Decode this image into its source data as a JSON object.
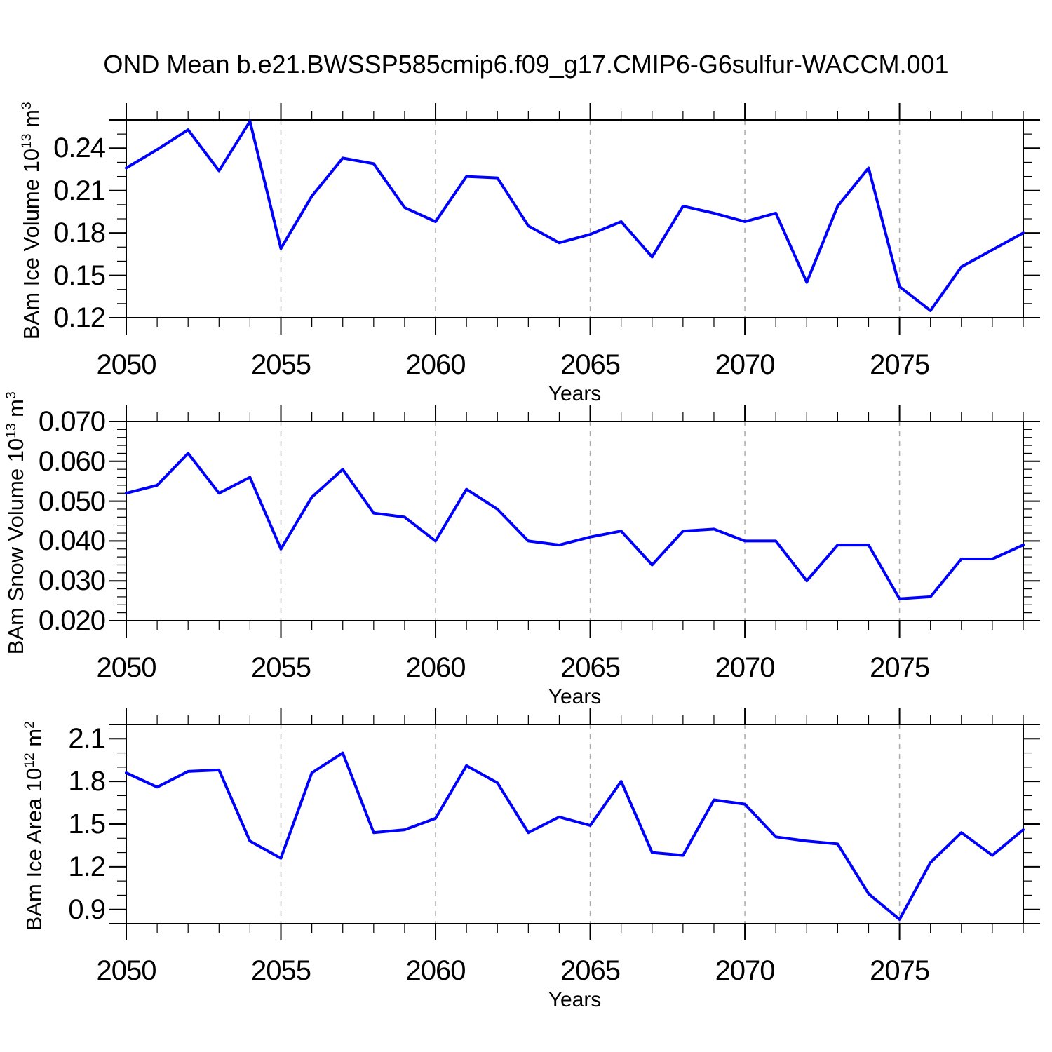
{
  "title": "OND Mean b.e21.BWSSP585cmip6.f09_g17.CMIP6-G6sulfur-WACCM.001",
  "colors": {
    "line": "#0000ff",
    "grid": "#aaaaaa",
    "axis": "#000000",
    "background": "#ffffff"
  },
  "x_axis": {
    "label": "Years",
    "range": [
      2050,
      2079
    ],
    "major_tick_labels": [
      "2050",
      "2055",
      "2060",
      "2065",
      "2070",
      "2075"
    ],
    "major_tick_years": [
      2050,
      2055,
      2060,
      2065,
      2070,
      2075
    ],
    "minor_step_years": 1,
    "grid_years": [
      2055,
      2060,
      2065,
      2070,
      2075
    ],
    "years": [
      2050,
      2051,
      2052,
      2053,
      2054,
      2055,
      2056,
      2057,
      2058,
      2059,
      2060,
      2061,
      2062,
      2063,
      2064,
      2065,
      2066,
      2067,
      2068,
      2069,
      2070,
      2071,
      2072,
      2073,
      2074,
      2075,
      2076,
      2077,
      2078,
      2079
    ]
  },
  "chart_data": [
    {
      "type": "line",
      "name": "bam-ice-volume",
      "ylabel": {
        "base": "BAm Ice Volume 10",
        "exp": "13",
        "unit": " m",
        "unit_exp": "3"
      },
      "ylim": [
        0.12,
        0.26
      ],
      "ytick_labels": [
        "0.12",
        "0.15",
        "0.18",
        "0.21",
        "0.24"
      ],
      "ytick_values": [
        0.12,
        0.15,
        0.18,
        0.21,
        0.24
      ],
      "yminor_step": 0.01,
      "values": [
        0.226,
        0.239,
        0.253,
        0.224,
        0.259,
        0.169,
        0.206,
        0.233,
        0.229,
        0.198,
        0.188,
        0.22,
        0.219,
        0.185,
        0.173,
        0.179,
        0.188,
        0.163,
        0.199,
        0.194,
        0.188,
        0.194,
        0.145,
        0.199,
        0.226,
        0.142,
        0.125,
        0.156,
        0.168,
        0.18
      ]
    },
    {
      "type": "line",
      "name": "bam-snow-volume",
      "ylabel": {
        "base": "BAm Snow Volume 10",
        "exp": "13",
        "unit": " m",
        "unit_exp": "3"
      },
      "ylim": [
        0.02,
        0.07
      ],
      "ytick_labels": [
        "0.020",
        "0.030",
        "0.040",
        "0.050",
        "0.060",
        "0.070"
      ],
      "ytick_values": [
        0.02,
        0.03,
        0.04,
        0.05,
        0.06,
        0.07
      ],
      "yminor_step": 0.002,
      "values": [
        0.052,
        0.054,
        0.062,
        0.052,
        0.056,
        0.038,
        0.051,
        0.058,
        0.047,
        0.046,
        0.04,
        0.053,
        0.048,
        0.04,
        0.039,
        0.041,
        0.0425,
        0.034,
        0.0425,
        0.043,
        0.04,
        0.04,
        0.03,
        0.039,
        0.039,
        0.0255,
        0.026,
        0.0355,
        0.0355,
        0.039
      ]
    },
    {
      "type": "line",
      "name": "bam-ice-area",
      "ylabel": {
        "base": "BAm Ice Area 10",
        "exp": "12",
        "unit": " m",
        "unit_exp": "2"
      },
      "ylim": [
        0.8,
        2.2
      ],
      "ytick_labels": [
        "0.9",
        "1.2",
        "1.5",
        "1.8",
        "2.1"
      ],
      "ytick_values": [
        0.9,
        1.2,
        1.5,
        1.8,
        2.1
      ],
      "yminor_step": 0.1,
      "values": [
        1.86,
        1.76,
        1.87,
        1.88,
        1.38,
        1.26,
        1.86,
        2.0,
        1.44,
        1.46,
        1.54,
        1.91,
        1.79,
        1.44,
        1.55,
        1.49,
        1.8,
        1.3,
        1.28,
        1.67,
        1.64,
        1.41,
        1.38,
        1.36,
        1.01,
        0.83,
        1.23,
        1.44,
        1.28,
        1.46
      ]
    }
  ]
}
